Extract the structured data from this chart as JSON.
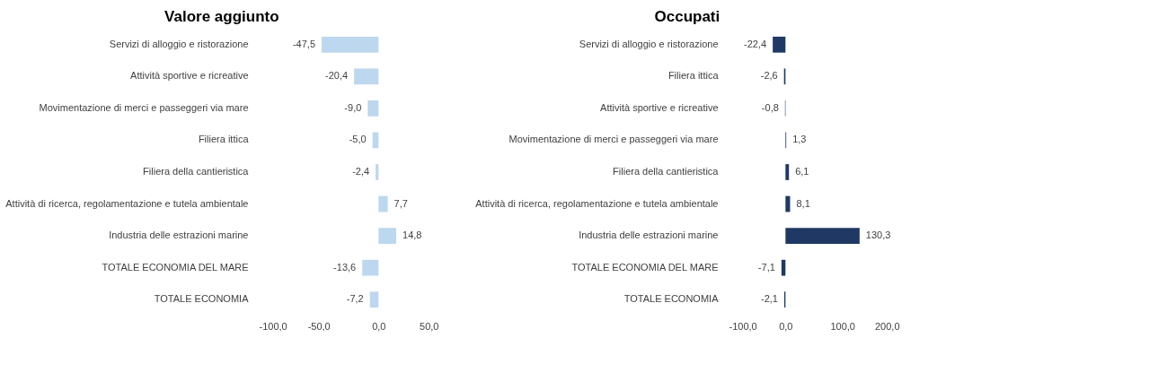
{
  "chart_data": [
    {
      "type": "bar",
      "orientation": "horizontal",
      "title": "Valore aggiunto",
      "categories": [
        "Servizi di alloggio e ristorazione",
        "Attività sportive e ricreative",
        "Movimentazione di merci e passeggeri via mare",
        "Filiera ittica",
        "Filiera della cantieristica",
        "Attività di ricerca, regolamentazione e tutela ambientale",
        "Industria delle estrazioni marine",
        "TOTALE ECONOMIA DEL MARE",
        "TOTALE ECONOMIA"
      ],
      "values": [
        -47.5,
        -20.4,
        -9.0,
        -5.0,
        -2.4,
        7.7,
        14.8,
        -13.6,
        -7.2
      ],
      "value_labels": [
        "-47,5",
        "-20,4",
        "-9,0",
        "-5,0",
        "-2,4",
        "7,7",
        "14,8",
        "-13,6",
        "-7,2"
      ],
      "color": "#bdd7ee",
      "xlim": [
        -100,
        50
      ],
      "xticks": [
        {
          "value": -100,
          "label": "-100,0"
        },
        {
          "value": -50,
          "label": "-50,0"
        },
        {
          "value": 0,
          "label": "0,0"
        },
        {
          "value": 50,
          "label": "50,0"
        }
      ]
    },
    {
      "type": "bar",
      "orientation": "horizontal",
      "title": "Occupati",
      "categories": [
        "Servizi di alloggio e ristorazione",
        "Filiera ittica",
        "Attività sportive e ricreative",
        "Movimentazione di merci e passeggeri via mare",
        "Filiera della cantieristica",
        "Attività di ricerca, regolamentazione e tutela ambientale",
        "Industria delle estrazioni marine",
        "TOTALE ECONOMIA DEL MARE",
        "TOTALE ECONOMIA"
      ],
      "values": [
        -22.4,
        -2.6,
        -0.8,
        1.3,
        6.1,
        8.1,
        130.3,
        -7.1,
        -2.1
      ],
      "value_labels": [
        "-22,4",
        "-2,6",
        "-0,8",
        "1,3",
        "6,1",
        "8,1",
        "130,3",
        "-7,1",
        "-2,1"
      ],
      "color": "#203864",
      "xlim": [
        -100,
        200
      ],
      "xticks": [
        {
          "value": -100,
          "label": "-100,0"
        },
        {
          "value": 0,
          "label": "0,0"
        },
        {
          "value": 100,
          "label": "100,0"
        },
        {
          "value": 200,
          "label": "200,0"
        }
      ]
    }
  ]
}
